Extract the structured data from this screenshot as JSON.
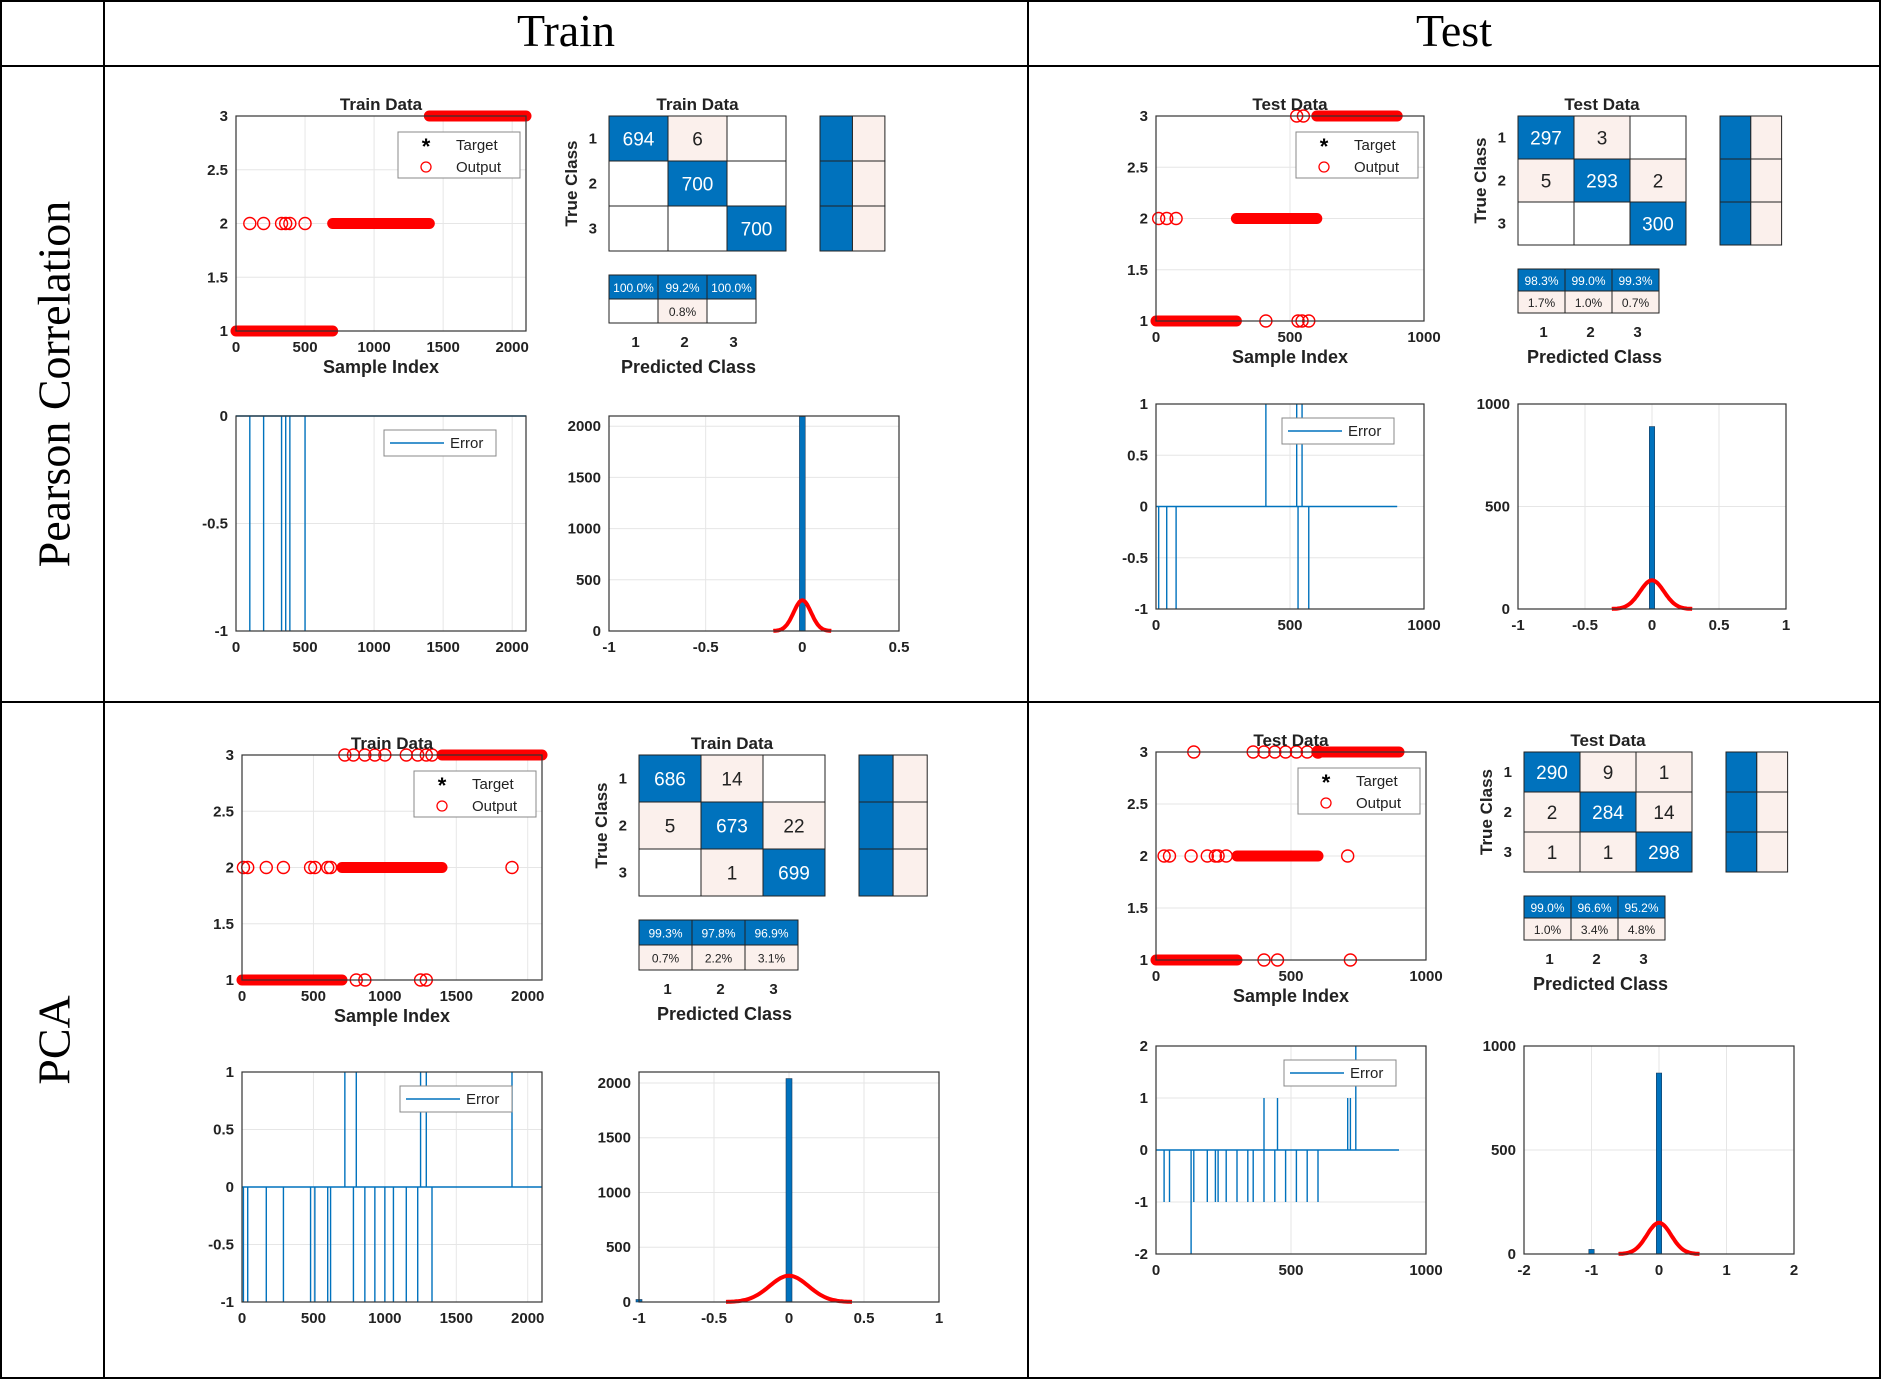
{
  "header": {
    "train": "Train",
    "test": "Test"
  },
  "rows": [
    {
      "label": "Pearson Correlation"
    },
    {
      "label": "PCA"
    }
  ],
  "labels": {
    "train_title": "Train Data",
    "test_title": "Test Data",
    "sample_index": "Sample Index",
    "true_class": "True Class",
    "predicted_class": "Predicted Class",
    "target": "Target",
    "output": "Output",
    "error": "Error"
  },
  "colors": {
    "blue": "#0072bd",
    "red": "#ff0000",
    "pink": "#fbf0ec",
    "grid": "#e6e6e6"
  },
  "chart_data": [
    {
      "id": "pc-train",
      "scatter": {
        "type": "scatter",
        "title": "Train Data",
        "xlim": [
          0,
          2100
        ],
        "ylim": [
          1,
          3
        ],
        "xticks": [
          0,
          500,
          1000,
          1500,
          2000
        ],
        "yticks": [
          1,
          1.5,
          2,
          2.5,
          3
        ],
        "xlabel": "Sample Index",
        "segments": [
          [
            0,
            1,
            700,
            1
          ],
          [
            700,
            2,
            1400,
            2
          ],
          [
            1400,
            3,
            2100,
            3
          ]
        ],
        "outliers": [
          [
            100,
            2
          ],
          [
            200,
            2
          ],
          [
            330,
            2
          ],
          [
            360,
            2
          ],
          [
            390,
            2
          ],
          [
            500,
            2
          ]
        ]
      },
      "confusion": {
        "type": "table",
        "title": "Train Data",
        "matrix": [
          [
            694,
            6,
            null
          ],
          [
            null,
            700,
            null
          ],
          [
            null,
            null,
            700
          ]
        ],
        "precision": [
          "100.0%",
          "99.2%",
          "100.0%"
        ],
        "fdr": [
          "",
          "0.8%",
          ""
        ],
        "classes": [
          "1",
          "2",
          "3"
        ]
      },
      "error": {
        "type": "line",
        "xlim": [
          0,
          2100
        ],
        "ylim": [
          -1,
          0
        ],
        "xticks": [
          0,
          500,
          1000,
          1500,
          2000
        ],
        "yticks": [
          -1,
          -0.5,
          0
        ],
        "spikes": [
          [
            100,
            -1
          ],
          [
            200,
            -1
          ],
          [
            330,
            -1
          ],
          [
            360,
            -1
          ],
          [
            390,
            -1
          ],
          [
            500,
            -1
          ]
        ],
        "baseline": 0,
        "baseline_end": 2100
      },
      "hist": {
        "type": "bar",
        "xlim": [
          -1,
          0.5
        ],
        "ylim": [
          0,
          2100
        ],
        "xticks": [
          -1,
          -0.5,
          0,
          0.5
        ],
        "yticks": [
          0,
          500,
          1000,
          1500,
          2000
        ],
        "bars": [
          [
            0,
            2094
          ]
        ],
        "bar_width": 0.03,
        "normal": {
          "mu": 0,
          "peak": 300,
          "sigma": 0.045,
          "range": [
            -0.15,
            0.15
          ]
        }
      }
    },
    {
      "id": "pc-test",
      "scatter": {
        "type": "scatter",
        "title": "Test Data",
        "xlim": [
          0,
          1000
        ],
        "ylim": [
          1,
          3
        ],
        "xticks": [
          0,
          500,
          1000
        ],
        "yticks": [
          1,
          1.5,
          2,
          2.5,
          3
        ],
        "xlabel": "Sample Index",
        "segments": [
          [
            0,
            1,
            300,
            1
          ],
          [
            300,
            2,
            600,
            2
          ],
          [
            600,
            3,
            900,
            3
          ]
        ],
        "outliers": [
          [
            10,
            2
          ],
          [
            40,
            2
          ],
          [
            75,
            2
          ],
          [
            410,
            1
          ],
          [
            530,
            1
          ],
          [
            545,
            1
          ],
          [
            570,
            1
          ],
          [
            525,
            3
          ],
          [
            550,
            3
          ]
        ]
      },
      "confusion": {
        "type": "table",
        "title": "Test Data",
        "matrix": [
          [
            297,
            3,
            null
          ],
          [
            5,
            293,
            2
          ],
          [
            null,
            null,
            300
          ]
        ],
        "precision": [
          "98.3%",
          "99.0%",
          "99.3%"
        ],
        "fdr": [
          "1.7%",
          "1.0%",
          "0.7%"
        ],
        "classes": [
          "1",
          "2",
          "3"
        ]
      },
      "error": {
        "type": "line",
        "xlim": [
          0,
          1000
        ],
        "ylim": [
          -1,
          1
        ],
        "xticks": [
          0,
          500,
          1000
        ],
        "yticks": [
          -1,
          -0.5,
          0,
          0.5,
          1
        ],
        "spikes": [
          [
            10,
            -1
          ],
          [
            40,
            -1
          ],
          [
            75,
            -1
          ],
          [
            410,
            1
          ],
          [
            525,
            1
          ],
          [
            530,
            -1
          ],
          [
            545,
            1
          ],
          [
            570,
            -1
          ]
        ],
        "baseline": 0,
        "baseline_end": 900
      },
      "hist": {
        "type": "bar",
        "xlim": [
          -1,
          1
        ],
        "ylim": [
          0,
          1000
        ],
        "xticks": [
          -1,
          -0.5,
          0,
          0.5,
          1
        ],
        "yticks": [
          0,
          500,
          1000
        ],
        "bars": [
          [
            0,
            890
          ]
        ],
        "bar_width": 0.04,
        "normal": {
          "mu": 0,
          "peak": 140,
          "sigma": 0.09,
          "range": [
            -0.3,
            0.3
          ]
        }
      }
    },
    {
      "id": "pca-train",
      "scatter": {
        "type": "scatter",
        "title": "Train Data",
        "xlim": [
          0,
          2100
        ],
        "ylim": [
          1,
          3
        ],
        "xticks": [
          0,
          500,
          1000,
          1500,
          2000
        ],
        "yticks": [
          1,
          1.5,
          2,
          2.5,
          3
        ],
        "xlabel": "Sample Index",
        "segments": [
          [
            0,
            1,
            700,
            1
          ],
          [
            700,
            2,
            1400,
            2
          ],
          [
            1400,
            3,
            2100,
            3
          ]
        ],
        "outliers": [
          [
            10,
            2
          ],
          [
            40,
            2
          ],
          [
            170,
            2
          ],
          [
            290,
            2
          ],
          [
            480,
            2
          ],
          [
            510,
            2
          ],
          [
            600,
            2
          ],
          [
            620,
            2
          ],
          [
            800,
            1
          ],
          [
            860,
            1
          ],
          [
            1250,
            1
          ],
          [
            1290,
            1
          ],
          [
            1890,
            2
          ],
          [
            720,
            3
          ],
          [
            780,
            3
          ],
          [
            860,
            3
          ],
          [
            930,
            3
          ],
          [
            1000,
            3
          ],
          [
            1150,
            3
          ],
          [
            1230,
            3
          ],
          [
            1290,
            3
          ],
          [
            1330,
            3
          ]
        ]
      },
      "confusion": {
        "type": "table",
        "title": "Train Data",
        "matrix": [
          [
            686,
            14,
            null
          ],
          [
            5,
            673,
            22
          ],
          [
            null,
            1,
            699
          ]
        ],
        "precision": [
          "99.3%",
          "97.8%",
          "96.9%"
        ],
        "fdr": [
          "0.7%",
          "2.2%",
          "3.1%"
        ],
        "classes": [
          "1",
          "2",
          "3"
        ]
      },
      "error": {
        "type": "line",
        "xlim": [
          0,
          2100
        ],
        "ylim": [
          -1,
          1
        ],
        "xticks": [
          0,
          500,
          1000,
          1500,
          2000
        ],
        "yticks": [
          -1,
          -0.5,
          0,
          0.5,
          1
        ],
        "spikes": [
          [
            10,
            -1
          ],
          [
            40,
            -1
          ],
          [
            170,
            -1
          ],
          [
            290,
            -1
          ],
          [
            480,
            -1
          ],
          [
            510,
            -1
          ],
          [
            600,
            -1
          ],
          [
            620,
            -1
          ],
          [
            720,
            1
          ],
          [
            780,
            -1
          ],
          [
            800,
            1
          ],
          [
            860,
            -1
          ],
          [
            930,
            -1
          ],
          [
            1000,
            -1
          ],
          [
            1060,
            -1
          ],
          [
            1150,
            -1
          ],
          [
            1230,
            -1
          ],
          [
            1250,
            1
          ],
          [
            1290,
            1
          ],
          [
            1330,
            -1
          ],
          [
            1890,
            1
          ]
        ],
        "baseline": 0,
        "baseline_end": 2100
      },
      "hist": {
        "type": "bar",
        "xlim": [
          -1,
          1
        ],
        "ylim": [
          0,
          2100
        ],
        "xticks": [
          -1,
          -0.5,
          0,
          0.5,
          1
        ],
        "yticks": [
          0,
          500,
          1000,
          1500,
          2000
        ],
        "bars": [
          [
            -1,
            23
          ],
          [
            0,
            2040
          ]
        ],
        "bar_width": 0.04,
        "normal": {
          "mu": 0,
          "peak": 240,
          "sigma": 0.13,
          "range": [
            -0.42,
            0.42
          ]
        }
      }
    },
    {
      "id": "pca-test",
      "scatter": {
        "type": "scatter",
        "title": "Test Data",
        "xlim": [
          0,
          1000
        ],
        "ylim": [
          1,
          3
        ],
        "xticks": [
          0,
          500,
          1000
        ],
        "yticks": [
          1,
          1.5,
          2,
          2.5,
          3
        ],
        "xlabel": "Sample Index",
        "segments": [
          [
            0,
            1,
            300,
            1
          ],
          [
            300,
            2,
            600,
            2
          ],
          [
            600,
            3,
            900,
            3
          ]
        ],
        "outliers": [
          [
            30,
            2
          ],
          [
            50,
            2
          ],
          [
            130,
            2
          ],
          [
            190,
            2
          ],
          [
            220,
            2
          ],
          [
            230,
            2
          ],
          [
            260,
            2
          ],
          [
            400,
            1
          ],
          [
            450,
            1
          ],
          [
            720,
            1
          ],
          [
            140,
            3
          ],
          [
            360,
            3
          ],
          [
            400,
            3
          ],
          [
            440,
            3
          ],
          [
            480,
            3
          ],
          [
            520,
            3
          ],
          [
            560,
            3
          ],
          [
            600,
            3
          ],
          [
            710,
            2
          ]
        ]
      },
      "confusion": {
        "type": "table",
        "title": "Test Data",
        "matrix": [
          [
            290,
            9,
            1
          ],
          [
            2,
            284,
            14
          ],
          [
            1,
            1,
            298
          ]
        ],
        "precision": [
          "99.0%",
          "96.6%",
          "95.2%"
        ],
        "fdr": [
          "1.0%",
          "3.4%",
          "4.8%"
        ],
        "classes": [
          "1",
          "2",
          "3"
        ]
      },
      "error": {
        "type": "line",
        "xlim": [
          0,
          1000
        ],
        "ylim": [
          -2,
          2
        ],
        "xticks": [
          0,
          500,
          1000
        ],
        "yticks": [
          -2,
          -1,
          0,
          1,
          2
        ],
        "spikes": [
          [
            30,
            -1
          ],
          [
            50,
            -1
          ],
          [
            130,
            -2
          ],
          [
            140,
            -1
          ],
          [
            190,
            -1
          ],
          [
            220,
            -1
          ],
          [
            230,
            -1
          ],
          [
            260,
            -1
          ],
          [
            300,
            -1
          ],
          [
            340,
            -1
          ],
          [
            360,
            -1
          ],
          [
            400,
            -1
          ],
          [
            400,
            1
          ],
          [
            440,
            -1
          ],
          [
            450,
            1
          ],
          [
            480,
            -1
          ],
          [
            520,
            -1
          ],
          [
            560,
            -1
          ],
          [
            600,
            -1
          ],
          [
            710,
            1
          ],
          [
            720,
            1
          ],
          [
            740,
            2
          ]
        ],
        "baseline": 0,
        "baseline_end": 900
      },
      "hist": {
        "type": "bar",
        "xlim": [
          -2,
          2
        ],
        "ylim": [
          0,
          1000
        ],
        "xticks": [
          -2,
          -1,
          0,
          1,
          2
        ],
        "yticks": [
          0,
          500,
          1000
        ],
        "bars": [
          [
            -1,
            22
          ],
          [
            0,
            870
          ]
        ],
        "bar_width": 0.08,
        "normal": {
          "mu": 0,
          "peak": 150,
          "sigma": 0.18,
          "range": [
            -0.6,
            0.6
          ]
        }
      }
    }
  ]
}
